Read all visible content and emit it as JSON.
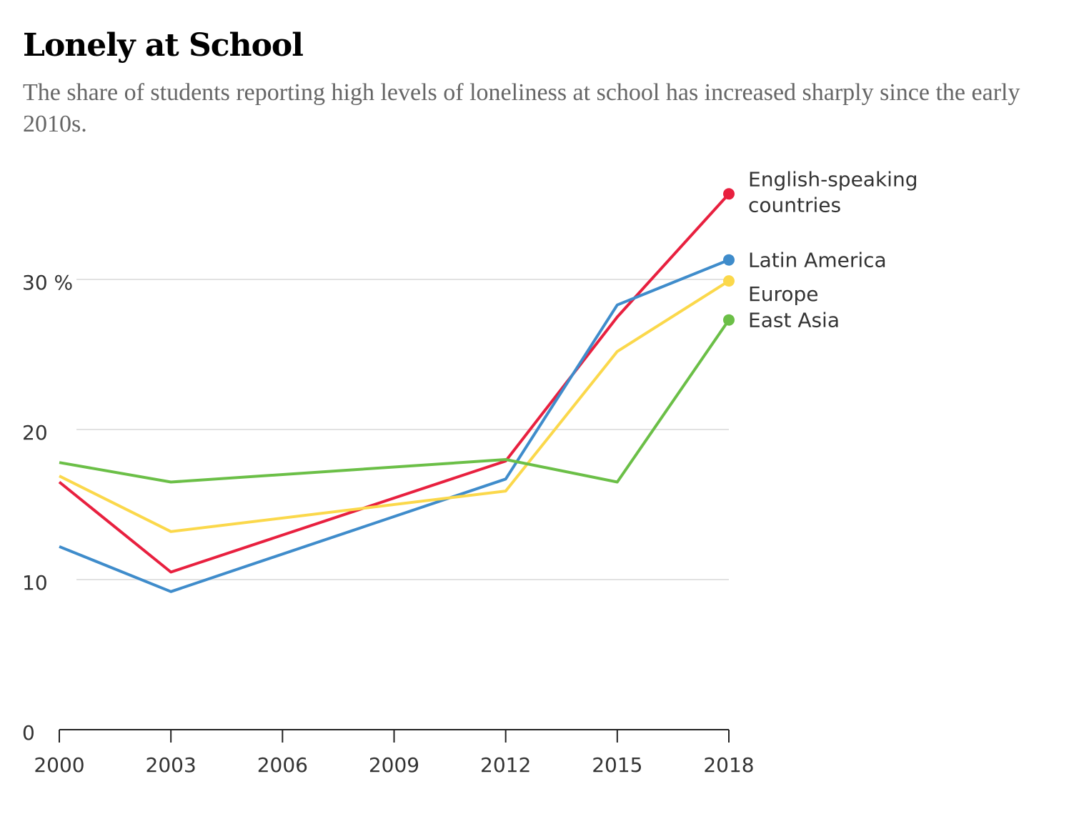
{
  "chart_data": {
    "type": "line",
    "title": "Lonely at School",
    "subtitle": "The share of students reporting high levels of loneliness at school has increased sharply since the early 2010s.",
    "xlabel": "",
    "ylabel": "",
    "x": [
      2000,
      2003,
      2006,
      2009,
      2012,
      2015,
      2018
    ],
    "x_ticks": [
      "2000",
      "2003",
      "2006",
      "2009",
      "2012",
      "2015",
      "2018"
    ],
    "y_ticks": [
      "0",
      "10",
      "20",
      "30 %"
    ],
    "ylim": [
      0,
      30
    ],
    "grid": true,
    "legend_placement": "direct labels at right end of lines",
    "series": [
      {
        "name": "English-speaking countries",
        "label_lines": [
          "English-speaking",
          "countries"
        ],
        "color": "#e8203f",
        "x": [
          2000,
          2003,
          2012,
          2015,
          2018
        ],
        "values": [
          16.5,
          10.5,
          17.9,
          27.5,
          35.7
        ]
      },
      {
        "name": "Latin America",
        "label_lines": [
          "Latin America"
        ],
        "color": "#3f8ccb",
        "x": [
          2000,
          2003,
          2012,
          2015,
          2018
        ],
        "values": [
          12.2,
          9.2,
          16.7,
          28.3,
          31.3
        ]
      },
      {
        "name": "Europe",
        "label_lines": [
          "Europe"
        ],
        "color": "#fbd84b",
        "x": [
          2000,
          2003,
          2012,
          2015,
          2018
        ],
        "values": [
          16.9,
          13.2,
          15.9,
          25.2,
          29.9
        ]
      },
      {
        "name": "East Asia",
        "label_lines": [
          "East Asia"
        ],
        "color": "#6bbf47",
        "x": [
          2000,
          2003,
          2012,
          2015,
          2018
        ],
        "values": [
          17.8,
          16.5,
          18.0,
          16.5,
          27.3
        ]
      }
    ]
  }
}
